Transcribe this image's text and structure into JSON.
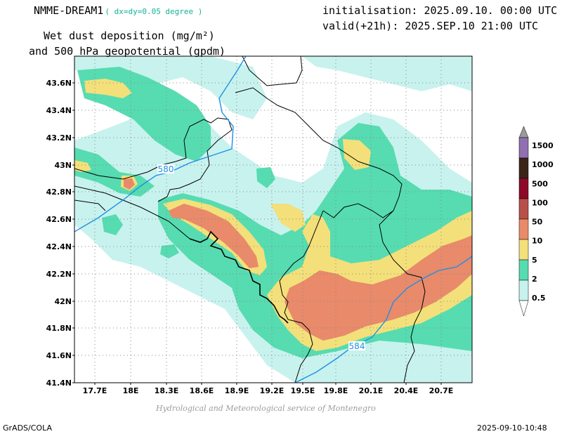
{
  "header": {
    "model": "NMME-DREAM1",
    "resolution": "( dx=dy=0.05 degree )",
    "initialisation": "initialisation: 2025.09.10. 00:00 UTC",
    "valid": "valid(+21h): 2025.SEP.10 21:00 UTC",
    "variable_line1": "Wet dust deposition (mg/m²)",
    "variable_line2": "and 500 hPa geopotential (gpdm)"
  },
  "map": {
    "lat_labels": [
      "43.6N",
      "43.4N",
      "43.2N",
      "43N",
      "42.8N",
      "42.6N",
      "42.4N",
      "42.2N",
      "42N",
      "41.8N",
      "41.6N",
      "41.4N"
    ],
    "lon_labels": [
      "17.7E",
      "18E",
      "18.3E",
      "18.6E",
      "18.9E",
      "19.2E",
      "19.5E",
      "19.8E",
      "20.1E",
      "20.4E",
      "20.7E"
    ],
    "contour_labels": [
      "580",
      "584"
    ],
    "colors": {
      "contour": "#1e90e6",
      "border": "#000000",
      "grid": "#888888"
    }
  },
  "legend": {
    "levels": [
      "1500",
      "1000",
      "500",
      "100",
      "50",
      "10",
      "5",
      "2",
      "0.5"
    ],
    "colors": [
      "#9a9a9a",
      "#9070b0",
      "#3a2418",
      "#8c0a28",
      "#b8504a",
      "#e98a6a",
      "#f3e07a",
      "#56dcb0",
      "#c8f2ee"
    ]
  },
  "footer": {
    "credit": "Hydrological and Meteorological service of Montenegro",
    "left": "GrADS/COLA",
    "right": "2025-09-10-10:48"
  }
}
